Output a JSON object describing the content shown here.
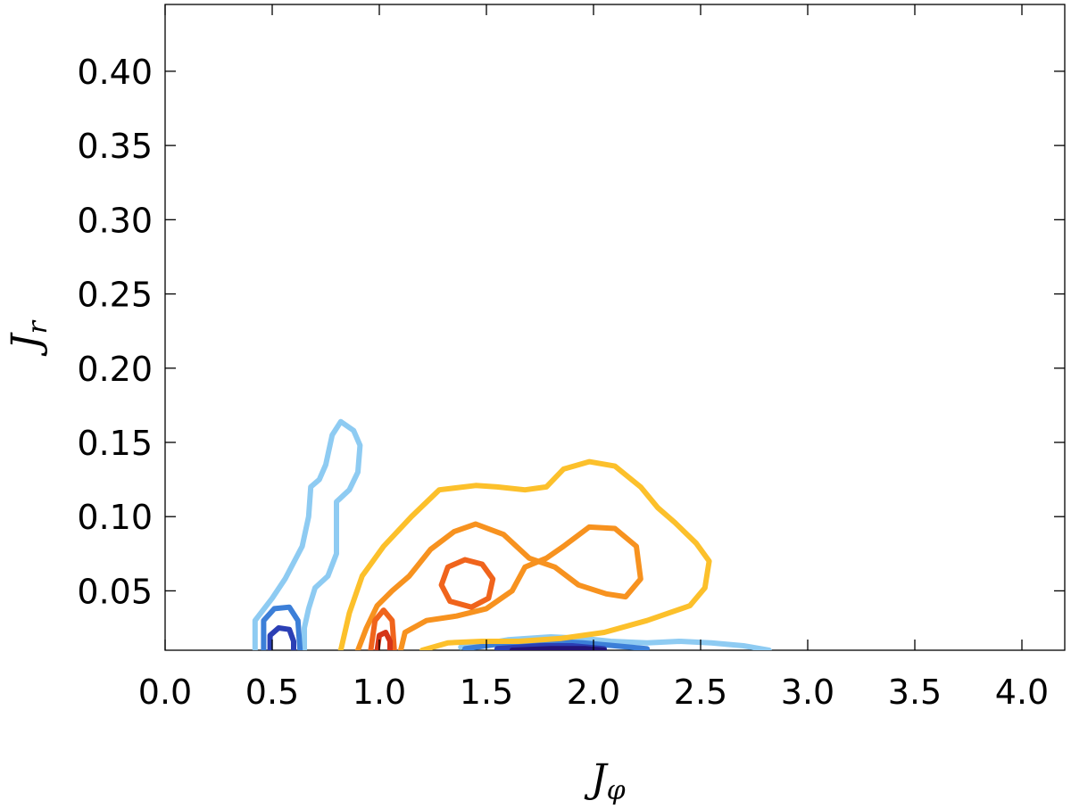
{
  "chart_data": {
    "type": "contour",
    "xlabel": "J",
    "xlabel_sub": "φ",
    "ylabel": "J",
    "ylabel_sub": "r",
    "xlim": [
      0.0,
      4.2
    ],
    "ylim": [
      0.01,
      0.445
    ],
    "x_ticks": [
      0.0,
      0.5,
      1.0,
      1.5,
      2.0,
      2.5,
      3.0,
      3.5,
      4.0
    ],
    "x_tick_labels": [
      "0.0",
      "0.5",
      "1.0",
      "1.5",
      "2.0",
      "2.5",
      "3.0",
      "3.5",
      "4.0"
    ],
    "y_ticks": [
      0.05,
      0.1,
      0.15,
      0.2,
      0.25,
      0.3,
      0.35,
      0.4
    ],
    "y_tick_labels": [
      "0.05",
      "0.10",
      "0.15",
      "0.20",
      "0.25",
      "0.30",
      "0.35",
      "0.40"
    ],
    "grid": false,
    "legend": "none",
    "series": [
      {
        "group": "blue",
        "level": 1,
        "color": "#8ecbf2",
        "paths": [
          [
            [
              0.42,
              0.01
            ],
            [
              0.42,
              0.03
            ],
            [
              0.5,
              0.045
            ],
            [
              0.56,
              0.058
            ],
            [
              0.64,
              0.08
            ],
            [
              0.67,
              0.1
            ],
            [
              0.68,
              0.12
            ],
            [
              0.72,
              0.125
            ],
            [
              0.75,
              0.135
            ],
            [
              0.78,
              0.155
            ],
            [
              0.82,
              0.164
            ],
            [
              0.88,
              0.158
            ],
            [
              0.91,
              0.148
            ],
            [
              0.9,
              0.13
            ],
            [
              0.86,
              0.118
            ],
            [
              0.8,
              0.11
            ],
            [
              0.8,
              0.09
            ],
            [
              0.8,
              0.075
            ],
            [
              0.76,
              0.06
            ],
            [
              0.7,
              0.052
            ],
            [
              0.67,
              0.038
            ],
            [
              0.65,
              0.025
            ],
            [
              0.65,
              0.01
            ]
          ],
          [
            [
              1.38,
              0.012
            ],
            [
              1.48,
              0.014
            ],
            [
              1.6,
              0.017
            ],
            [
              1.8,
              0.019
            ],
            [
              1.95,
              0.018
            ],
            [
              2.08,
              0.016
            ],
            [
              2.25,
              0.015
            ],
            [
              2.4,
              0.016
            ],
            [
              2.55,
              0.015
            ],
            [
              2.7,
              0.013
            ],
            [
              2.82,
              0.01
            ]
          ]
        ]
      },
      {
        "group": "blue",
        "level": 2,
        "color": "#3c7fd8",
        "paths": [
          [
            [
              0.46,
              0.01
            ],
            [
              0.46,
              0.03
            ],
            [
              0.51,
              0.038
            ],
            [
              0.58,
              0.039
            ],
            [
              0.62,
              0.03
            ],
            [
              0.63,
              0.01
            ]
          ],
          [
            [
              1.4,
              0.011
            ],
            [
              1.55,
              0.014
            ],
            [
              1.8,
              0.016
            ],
            [
              1.95,
              0.015
            ],
            [
              2.1,
              0.013
            ],
            [
              2.25,
              0.011
            ]
          ]
        ]
      },
      {
        "group": "blue",
        "level": 3,
        "color": "#2b3fb5",
        "paths": [
          [
            [
              0.49,
              0.01
            ],
            [
              0.49,
              0.02
            ],
            [
              0.53,
              0.025
            ],
            [
              0.58,
              0.024
            ],
            [
              0.6,
              0.016
            ],
            [
              0.6,
              0.01
            ]
          ],
          [
            [
              1.55,
              0.011
            ],
            [
              1.75,
              0.013
            ],
            [
              1.9,
              0.013
            ],
            [
              2.05,
              0.011
            ]
          ]
        ]
      },
      {
        "group": "blue",
        "level": 4,
        "color": "#251478",
        "paths": [
          [
            [
              1.62,
              0.01
            ],
            [
              1.8,
              0.011
            ],
            [
              1.96,
              0.011
            ],
            [
              2.05,
              0.01
            ]
          ]
        ]
      },
      {
        "group": "warm",
        "level": 1,
        "color": "#fcc02b",
        "paths": [
          [
            [
              0.82,
              0.01
            ],
            [
              0.86,
              0.035
            ],
            [
              0.92,
              0.06
            ],
            [
              1.02,
              0.08
            ],
            [
              1.15,
              0.1
            ],
            [
              1.28,
              0.118
            ],
            [
              1.45,
              0.121
            ],
            [
              1.55,
              0.12
            ],
            [
              1.68,
              0.118
            ],
            [
              1.78,
              0.12
            ],
            [
              1.86,
              0.132
            ],
            [
              1.98,
              0.137
            ],
            [
              2.1,
              0.134
            ],
            [
              2.22,
              0.12
            ],
            [
              2.3,
              0.106
            ],
            [
              2.38,
              0.096
            ],
            [
              2.48,
              0.082
            ],
            [
              2.54,
              0.07
            ],
            [
              2.52,
              0.052
            ],
            [
              2.45,
              0.04
            ],
            [
              2.25,
              0.03
            ],
            [
              2.05,
              0.022
            ],
            [
              1.85,
              0.018
            ],
            [
              1.65,
              0.016
            ],
            [
              1.48,
              0.016
            ],
            [
              1.32,
              0.015
            ],
            [
              1.2,
              0.01
            ]
          ]
        ]
      },
      {
        "group": "warm",
        "level": 2,
        "color": "#f7921f",
        "paths": [
          [
            [
              0.9,
              0.01
            ],
            [
              0.94,
              0.025
            ],
            [
              0.99,
              0.04
            ],
            [
              1.06,
              0.05
            ],
            [
              1.14,
              0.06
            ],
            [
              1.24,
              0.078
            ],
            [
              1.35,
              0.09
            ],
            [
              1.45,
              0.095
            ],
            [
              1.58,
              0.088
            ],
            [
              1.7,
              0.072
            ],
            [
              1.82,
              0.066
            ],
            [
              1.93,
              0.054
            ],
            [
              2.06,
              0.048
            ],
            [
              2.15,
              0.046
            ],
            [
              2.22,
              0.058
            ],
            [
              2.2,
              0.08
            ],
            [
              2.1,
              0.092
            ],
            [
              1.98,
              0.093
            ],
            [
              1.86,
              0.08
            ],
            [
              1.78,
              0.072
            ],
            [
              1.68,
              0.066
            ],
            [
              1.62,
              0.05
            ],
            [
              1.5,
              0.038
            ],
            [
              1.36,
              0.033
            ],
            [
              1.22,
              0.03
            ],
            [
              1.12,
              0.022
            ],
            [
              1.1,
              0.01
            ]
          ]
        ]
      },
      {
        "group": "warm",
        "level": 3,
        "color": "#f0641c",
        "paths": [
          [
            [
              1.4,
              0.071
            ],
            [
              1.48,
              0.068
            ],
            [
              1.53,
              0.058
            ],
            [
              1.51,
              0.045
            ],
            [
              1.43,
              0.039
            ],
            [
              1.33,
              0.043
            ],
            [
              1.29,
              0.054
            ],
            [
              1.32,
              0.066
            ],
            [
              1.4,
              0.071
            ]
          ],
          [
            [
              0.96,
              0.01
            ],
            [
              0.98,
              0.03
            ],
            [
              1.02,
              0.037
            ],
            [
              1.06,
              0.03
            ],
            [
              1.07,
              0.01
            ]
          ]
        ]
      },
      {
        "group": "warm",
        "level": 4,
        "color": "#d53518",
        "paths": [
          [
            [
              0.99,
              0.01
            ],
            [
              1.0,
              0.02
            ],
            [
              1.03,
              0.022
            ],
            [
              1.05,
              0.016
            ],
            [
              1.05,
              0.01
            ]
          ]
        ]
      }
    ]
  }
}
